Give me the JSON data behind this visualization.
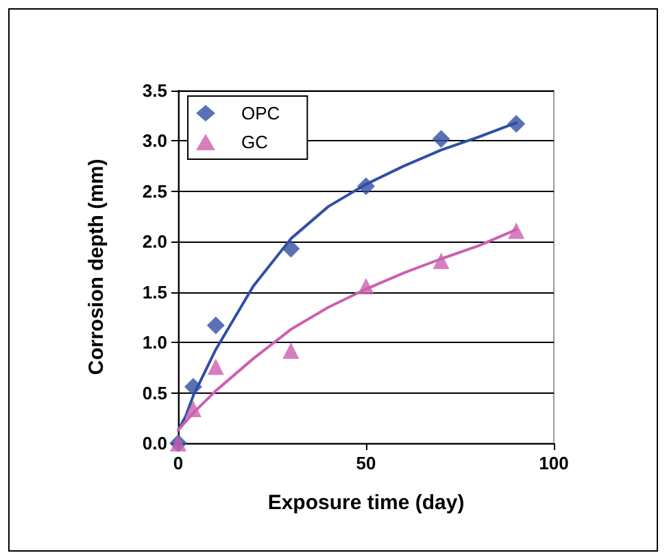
{
  "chart_data": {
    "type": "scatter",
    "xlabel": "Exposure time (day)",
    "ylabel": "Corrosion depth (mm)",
    "xlim": [
      0,
      100
    ],
    "xticks": [
      0,
      50,
      100
    ],
    "ylim": [
      0,
      3.5
    ],
    "yticks": [
      {
        "value": 0,
        "label": "0.0"
      },
      {
        "value": 0.5,
        "label": "0.5"
      },
      {
        "value": 1,
        "label": "1.0"
      },
      {
        "value": 1.5,
        "label": "1.5"
      },
      {
        "value": 2,
        "label": "2.0"
      },
      {
        "value": 2.5,
        "label": "2.5"
      },
      {
        "value": 3,
        "label": "3.0"
      },
      {
        "value": 3.5,
        "label": "3.5"
      }
    ],
    "grid": "y",
    "legend": "top left",
    "series": [
      {
        "name": "OPC",
        "marker": "diamond",
        "color": "#2e4fa3",
        "x": [
          0,
          4,
          10,
          30,
          50,
          70,
          90
        ],
        "values": [
          0,
          0.56,
          1.17,
          1.93,
          2.55,
          3.02,
          3.17
        ]
      },
      {
        "name": "GC",
        "marker": "triangle",
        "color": "#cc5fb0",
        "x": [
          0,
          4,
          10,
          30,
          50,
          70,
          90
        ],
        "values": [
          0,
          0.34,
          0.76,
          0.92,
          1.56,
          1.81,
          2.11
        ]
      },
      {
        "type": "line",
        "marker": "none",
        "line_style": "solid",
        "color": "#2e4fa3",
        "x": [
          0,
          2,
          4,
          10,
          20,
          30,
          40,
          50,
          60,
          70,
          80,
          90
        ],
        "values": [
          0.13,
          0.27,
          0.47,
          0.93,
          1.56,
          2.03,
          2.35,
          2.57,
          2.75,
          2.91,
          3.04,
          3.18
        ]
      },
      {
        "type": "line",
        "marker": "none",
        "line_style": "solid",
        "color": "#cc5fb0",
        "x": [
          0,
          4,
          10,
          20,
          30,
          40,
          50,
          60,
          70,
          80,
          90
        ],
        "values": [
          0.13,
          0.3,
          0.52,
          0.84,
          1.13,
          1.35,
          1.53,
          1.69,
          1.83,
          1.96,
          2.12
        ]
      }
    ]
  }
}
